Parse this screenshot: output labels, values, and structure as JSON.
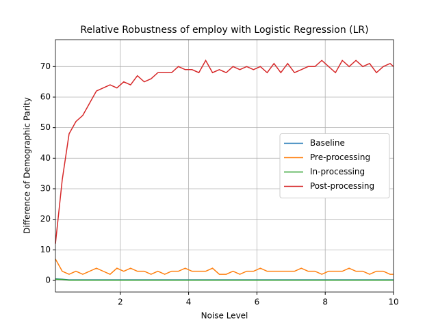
{
  "chart_data": {
    "type": "line",
    "title": "Relative Robustness of employ with Logistic Regression (LR)",
    "x_label": "Noise Level",
    "y_label": "Difference of Demographic Parity",
    "x": [
      0.1,
      0.3,
      0.5,
      0.7,
      0.9,
      1.1,
      1.3,
      1.5,
      1.7,
      1.9,
      2.1,
      2.3,
      2.5,
      2.7,
      2.9,
      3.1,
      3.3,
      3.5,
      3.7,
      3.9,
      4.1,
      4.3,
      4.5,
      4.7,
      4.9,
      5.1,
      5.3,
      5.5,
      5.7,
      5.9,
      6.1,
      6.3,
      6.5,
      6.7,
      6.9,
      7.1,
      7.3,
      7.5,
      7.7,
      7.9,
      8.1,
      8.3,
      8.5,
      8.7,
      8.9,
      9.1,
      9.3,
      9.5,
      9.7,
      9.9,
      10
    ],
    "series": [
      {
        "name": "Baseline",
        "color": "#1f77b4",
        "values": [
          0.5,
          0.4,
          0.2,
          0.2,
          0.2,
          0.2,
          0.2,
          0.2,
          0.2,
          0.2,
          0.2,
          0.2,
          0.2,
          0.2,
          0.2,
          0.2,
          0.2,
          0.2,
          0.2,
          0.2,
          0.2,
          0.2,
          0.2,
          0.2,
          0.2,
          0.2,
          0.2,
          0.2,
          0.2,
          0.2,
          0.2,
          0.2,
          0.2,
          0.2,
          0.2,
          0.2,
          0.2,
          0.2,
          0.2,
          0.2,
          0.2,
          0.2,
          0.2,
          0.2,
          0.2,
          0.2,
          0.2,
          0.2,
          0.2,
          0.2,
          0.2
        ]
      },
      {
        "name": "Pre-processing",
        "color": "#ff7f0e",
        "values": [
          7,
          3,
          2,
          3,
          2,
          3,
          4,
          3,
          2,
          4,
          3,
          4,
          3,
          3,
          2,
          3,
          2,
          3,
          3,
          4,
          3,
          3,
          3,
          4,
          2,
          2,
          3,
          2,
          3,
          3,
          4,
          3,
          3,
          3,
          3,
          3,
          4,
          3,
          3,
          2,
          3,
          3,
          3,
          4,
          3,
          3,
          2,
          3,
          3,
          2,
          2
        ]
      },
      {
        "name": "In-processing",
        "color": "#2ca02c",
        "values": [
          0.4,
          0.3,
          0.1,
          0.1,
          0.1,
          0.1,
          0.1,
          0.1,
          0.1,
          0.1,
          0.1,
          0.1,
          0.1,
          0.1,
          0.1,
          0.1,
          0.1,
          0.1,
          0.1,
          0.1,
          0.1,
          0.1,
          0.1,
          0.1,
          0.1,
          0.1,
          0.1,
          0.1,
          0.1,
          0.1,
          0.1,
          0.1,
          0.1,
          0.1,
          0.1,
          0.1,
          0.1,
          0.1,
          0.1,
          0.1,
          0.1,
          0.1,
          0.1,
          0.1,
          0.1,
          0.1,
          0.1,
          0.1,
          0.1,
          0.1,
          0.1
        ]
      },
      {
        "name": "Post-processing",
        "color": "#d62728",
        "values": [
          12,
          33,
          48,
          52,
          54,
          58,
          62,
          63,
          64,
          63,
          65,
          64,
          67,
          65,
          66,
          68,
          68,
          68,
          70,
          69,
          69,
          68,
          72,
          68,
          69,
          68,
          70,
          69,
          70,
          69,
          70,
          68,
          71,
          68,
          71,
          68,
          69,
          70,
          70,
          72,
          70,
          68,
          72,
          70,
          72,
          70,
          71,
          68,
          70,
          71,
          70
        ]
      }
    ],
    "xlim": [
      0.1,
      10
    ],
    "ylim": [
      -3.8,
      78.8
    ],
    "xticks": [
      2,
      4,
      6,
      8,
      10
    ],
    "yticks": [
      0,
      10,
      20,
      30,
      40,
      50,
      60,
      70
    ],
    "grid": true,
    "legend": "center right"
  }
}
